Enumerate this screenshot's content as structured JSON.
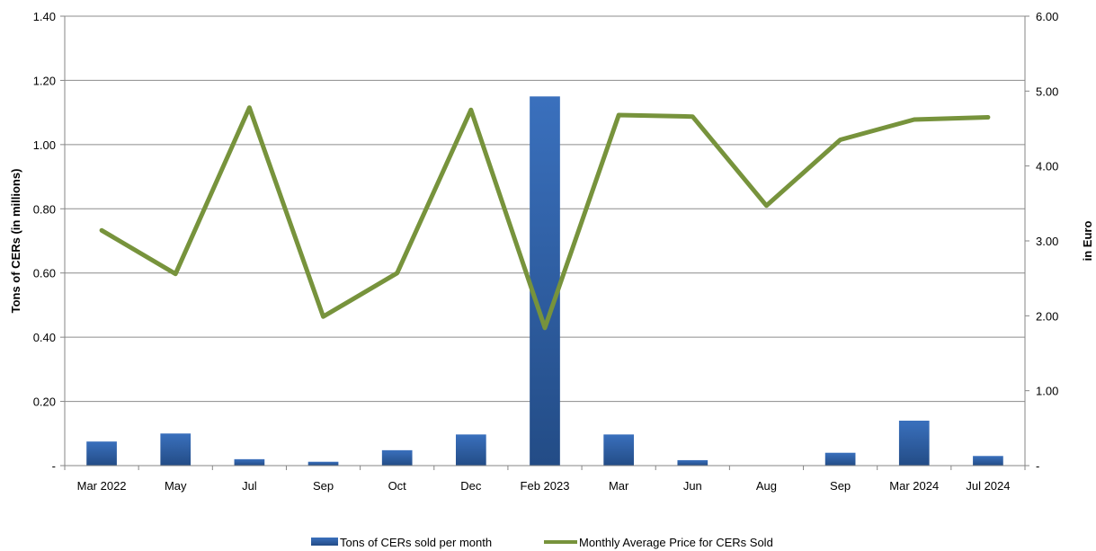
{
  "chart_data": {
    "type": "bar",
    "categories": [
      "Mar 2022",
      "May",
      "Jul",
      "Sep",
      "Oct",
      "Dec",
      "Feb 2023",
      "Mar",
      "Jun",
      "Aug",
      "Sep",
      "Mar 2024",
      "Jul 2024"
    ],
    "series": [
      {
        "name": "Tons of CERs sold per month",
        "type": "bar",
        "axis": "left",
        "color": "#2E5FA3",
        "values": [
          0.075,
          0.1,
          0.02,
          0.012,
          0.048,
          0.097,
          1.15,
          0.097,
          0.017,
          0.0,
          0.04,
          0.14,
          0.03
        ]
      },
      {
        "name": "Monthly Average Price for CERs Sold",
        "type": "line",
        "axis": "right",
        "color": "#77933C",
        "values": [
          3.14,
          2.56,
          4.78,
          1.99,
          2.57,
          4.75,
          1.84,
          4.68,
          4.66,
          3.47,
          4.35,
          4.62,
          4.65
        ]
      }
    ],
    "ylabel": "Tons of CERs (in  millions)",
    "y2label": "in Euro",
    "ylim": [
      0,
      1.4
    ],
    "y2lim": [
      0,
      6
    ],
    "yticks": [
      "-",
      "0.20",
      "0.40",
      "0.60",
      "0.80",
      "1.00",
      "1.20",
      "1.40"
    ],
    "y2ticks": [
      "-",
      "1.00",
      "2.00",
      "3.00",
      "4.00",
      "5.00",
      "6.00"
    ],
    "grid": true,
    "legend_position": "bottom"
  }
}
